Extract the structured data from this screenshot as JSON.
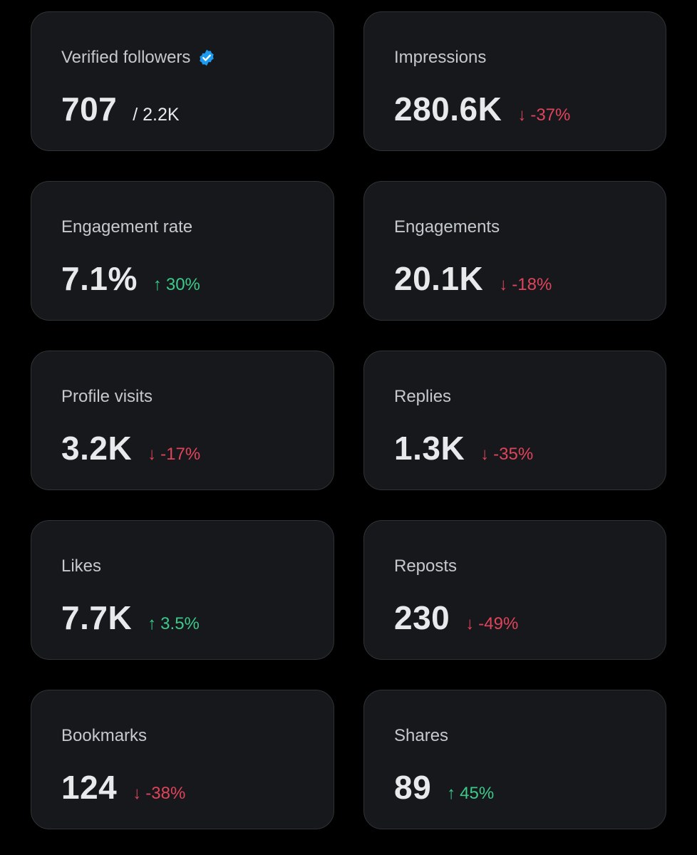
{
  "colors": {
    "background": "#000000",
    "card": "#16181c",
    "card_border": "#2f3336",
    "positive": "#3cc98a",
    "negative": "#e0445a",
    "verified_badge": "#1d9bf0"
  },
  "cards": [
    {
      "title": "Verified followers",
      "value": "707",
      "sub": "/ 2.2K",
      "verified_icon": "verified-badge-icon"
    },
    {
      "title": "Impressions",
      "value": "280.6K",
      "delta": {
        "direction": "down",
        "arrow": "↓",
        "text": "-37%"
      }
    },
    {
      "title": "Engagement rate",
      "value": "7.1%",
      "delta": {
        "direction": "up",
        "arrow": "↑",
        "text": "30%"
      }
    },
    {
      "title": "Engagements",
      "value": "20.1K",
      "delta": {
        "direction": "down",
        "arrow": "↓",
        "text": "-18%"
      }
    },
    {
      "title": "Profile visits",
      "value": "3.2K",
      "delta": {
        "direction": "down",
        "arrow": "↓",
        "text": "-17%"
      }
    },
    {
      "title": "Replies",
      "value": "1.3K",
      "delta": {
        "direction": "down",
        "arrow": "↓",
        "text": "-35%"
      }
    },
    {
      "title": "Likes",
      "value": "7.7K",
      "delta": {
        "direction": "up",
        "arrow": "↑",
        "text": "3.5%"
      }
    },
    {
      "title": "Reposts",
      "value": "230",
      "delta": {
        "direction": "down",
        "arrow": "↓",
        "text": "-49%"
      }
    },
    {
      "title": "Bookmarks",
      "value": "124",
      "delta": {
        "direction": "down",
        "arrow": "↓",
        "text": "-38%"
      }
    },
    {
      "title": "Shares",
      "value": "89",
      "delta": {
        "direction": "up",
        "arrow": "↑",
        "text": "45%"
      }
    }
  ]
}
